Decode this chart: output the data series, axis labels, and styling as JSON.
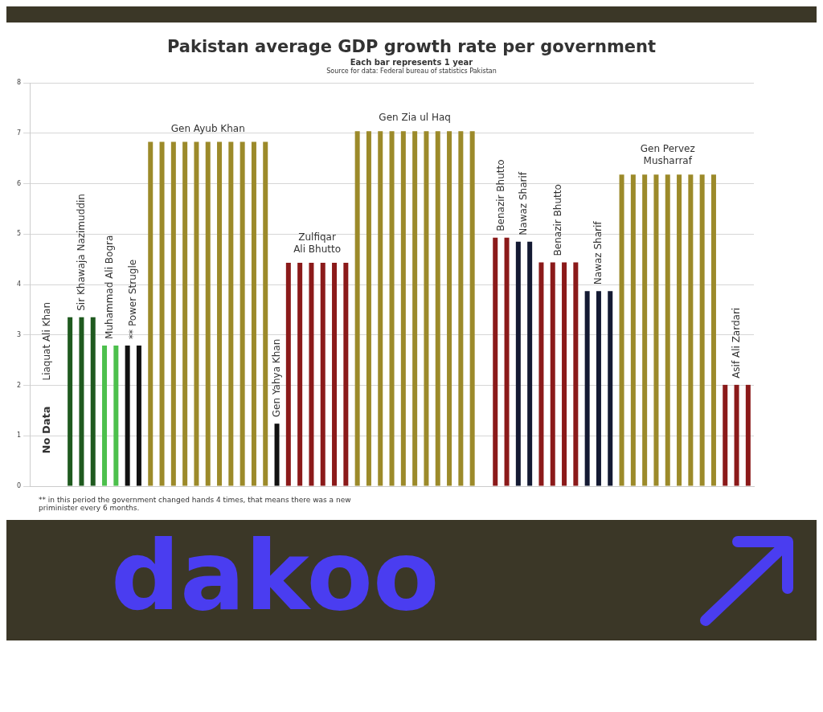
{
  "chart_data": {
    "type": "bar",
    "title": "Pakistan average GDP growth rate per government",
    "subtitle": "Each bar represents 1 year",
    "annotations": [
      "No Data",
      "Source for data: Federal bureau of statistics Pakistan",
      "** in this period the government changed hands 4 times, that means there was a new priminister every 6 months.",
      "dakoo"
    ],
    "categories": [
      null,
      null,
      null,
      null,
      null,
      null,
      null,
      null,
      null,
      null,
      null,
      null,
      null,
      null,
      null,
      null,
      null,
      null,
      null,
      null,
      null,
      null,
      null,
      null,
      null,
      null,
      null,
      null,
      null,
      null,
      null,
      null,
      null,
      null,
      null,
      null,
      null,
      null,
      null,
      null,
      null,
      null,
      null,
      null,
      null,
      null,
      null,
      null,
      null,
      null,
      null,
      null,
      null,
      null,
      null,
      null,
      null,
      null,
      null,
      null,
      null,
      null,
      null
    ],
    "series": [
      {
        "name": "Liaquat Ali Khan",
        "color": "#1f5a1f",
        "values": [
          null,
          null,
          null,
          null,
          null,
          null,
          null,
          null,
          null,
          null,
          null,
          null,
          null,
          null,
          null,
          null,
          null,
          null,
          null,
          null,
          null,
          null,
          null,
          null,
          null,
          null,
          null,
          null,
          null,
          null,
          null,
          null,
          null,
          null,
          null,
          null,
          null,
          null,
          null,
          null,
          null,
          null,
          null,
          null,
          null,
          null,
          null,
          null,
          null,
          null,
          null,
          null,
          null,
          null,
          null,
          null,
          null,
          null,
          null,
          null,
          null,
          null,
          null
        ]
      },
      {
        "name": "Sir Khawaja Nazimuddin",
        "color": "#1f5a1f",
        "values": [
          null,
          null,
          null,
          3.35,
          3.35,
          3.35,
          null,
          null,
          null,
          null,
          null,
          null,
          null,
          null,
          null,
          null,
          null,
          null,
          null,
          null,
          null,
          null,
          null,
          null,
          null,
          null,
          null,
          null,
          null,
          null,
          null,
          null,
          null,
          null,
          null,
          null,
          null,
          null,
          null,
          null,
          null,
          null,
          null,
          null,
          null,
          null,
          null,
          null,
          null,
          null,
          null,
          null,
          null,
          null,
          null,
          null,
          null,
          null,
          null,
          null,
          null,
          null,
          null
        ]
      },
      {
        "name": "Muhammad Ali Bogra",
        "color": "#4cc04c",
        "values": [
          null,
          null,
          null,
          null,
          null,
          null,
          2.79,
          2.79,
          null,
          null,
          null,
          null,
          null,
          null,
          null,
          null,
          null,
          null,
          null,
          null,
          null,
          null,
          null,
          null,
          null,
          null,
          null,
          null,
          null,
          null,
          null,
          null,
          null,
          null,
          null,
          null,
          null,
          null,
          null,
          null,
          null,
          null,
          null,
          null,
          null,
          null,
          null,
          null,
          null,
          null,
          null,
          null,
          null,
          null,
          null,
          null,
          null,
          null,
          null,
          null,
          null,
          null,
          null
        ]
      },
      {
        "name": "** Power Strugle",
        "color": "#111111",
        "values": [
          null,
          null,
          null,
          null,
          null,
          null,
          null,
          null,
          2.79,
          2.79,
          null,
          null,
          null,
          null,
          null,
          null,
          null,
          null,
          null,
          null,
          null,
          null,
          null,
          null,
          null,
          null,
          null,
          null,
          null,
          null,
          null,
          null,
          null,
          null,
          null,
          null,
          null,
          null,
          null,
          null,
          null,
          null,
          null,
          null,
          null,
          null,
          null,
          null,
          null,
          null,
          null,
          null,
          null,
          null,
          null,
          null,
          null,
          null,
          null,
          null,
          null,
          null,
          null
        ]
      },
      {
        "name": "Gen Ayub Khan",
        "color": "#9c8a2a",
        "values": [
          null,
          null,
          null,
          null,
          null,
          null,
          null,
          null,
          null,
          null,
          6.83,
          6.83,
          6.83,
          6.83,
          6.83,
          6.83,
          6.83,
          6.83,
          6.83,
          6.83,
          6.83,
          null,
          null,
          null,
          null,
          null,
          null,
          null,
          null,
          null,
          null,
          null,
          null,
          null,
          null,
          null,
          null,
          null,
          null,
          null,
          null,
          null,
          null,
          null,
          null,
          null,
          null,
          null,
          null,
          null,
          null,
          null,
          null,
          null,
          null,
          null,
          null,
          null,
          null,
          null,
          null,
          null,
          null
        ]
      },
      {
        "name": "Gen Yahya Khan",
        "color": "#111111",
        "values": [
          null,
          null,
          null,
          null,
          null,
          null,
          null,
          null,
          null,
          null,
          null,
          null,
          null,
          null,
          null,
          null,
          null,
          null,
          null,
          null,
          null,
          1.24,
          null,
          null,
          null,
          null,
          null,
          null,
          null,
          null,
          null,
          null,
          null,
          null,
          null,
          null,
          null,
          null,
          null,
          null,
          null,
          null,
          null,
          null,
          null,
          null,
          null,
          null,
          null,
          null,
          null,
          null,
          null,
          null,
          null,
          null,
          null,
          null,
          null,
          null,
          null,
          null,
          null
        ]
      },
      {
        "name": "Zulfiqar Ali Bhutto",
        "color": "#8b1a1a",
        "values": [
          null,
          null,
          null,
          null,
          null,
          null,
          null,
          null,
          null,
          null,
          null,
          null,
          null,
          null,
          null,
          null,
          null,
          null,
          null,
          null,
          null,
          null,
          4.43,
          4.43,
          4.43,
          4.43,
          4.43,
          4.43,
          null,
          null,
          null,
          null,
          null,
          null,
          null,
          null,
          null,
          null,
          null,
          null,
          null,
          null,
          null,
          null,
          null,
          null,
          null,
          null,
          null,
          null,
          null,
          null,
          null,
          null,
          null,
          null,
          null,
          null,
          null,
          null,
          null,
          null,
          null
        ]
      },
      {
        "name": "Gen Zia ul Haq",
        "color": "#9c8a2a",
        "values": [
          null,
          null,
          null,
          null,
          null,
          null,
          null,
          null,
          null,
          null,
          null,
          null,
          null,
          null,
          null,
          null,
          null,
          null,
          null,
          null,
          null,
          null,
          null,
          null,
          null,
          null,
          null,
          null,
          7.04,
          7.04,
          7.04,
          7.04,
          7.04,
          7.04,
          7.04,
          7.04,
          7.04,
          7.04,
          7.04,
          null,
          null,
          null,
          null,
          null,
          null,
          null,
          null,
          null,
          null,
          null,
          null,
          null,
          null,
          null,
          null,
          null,
          null,
          null,
          null,
          null,
          null,
          null,
          null
        ]
      },
      {
        "name": "Benazir Bhutto",
        "color": "#8b1a1a",
        "values": [
          null,
          null,
          null,
          null,
          null,
          null,
          null,
          null,
          null,
          null,
          null,
          null,
          null,
          null,
          null,
          null,
          null,
          null,
          null,
          null,
          null,
          null,
          null,
          null,
          null,
          null,
          null,
          null,
          null,
          null,
          null,
          null,
          null,
          null,
          null,
          null,
          null,
          null,
          null,
          null,
          4.93,
          4.93,
          null,
          null,
          null,
          null,
          null,
          null,
          null,
          null,
          null,
          null,
          null,
          null,
          null,
          null,
          null,
          null,
          null,
          null,
          null,
          null,
          null
        ]
      },
      {
        "name": "Nawaz Sharif",
        "color": "#141a33",
        "values": [
          null,
          null,
          null,
          null,
          null,
          null,
          null,
          null,
          null,
          null,
          null,
          null,
          null,
          null,
          null,
          null,
          null,
          null,
          null,
          null,
          null,
          null,
          null,
          null,
          null,
          null,
          null,
          null,
          null,
          null,
          null,
          null,
          null,
          null,
          null,
          null,
          null,
          null,
          null,
          null,
          null,
          null,
          4.85,
          4.85,
          null,
          null,
          null,
          null,
          null,
          null,
          null,
          null,
          null,
          null,
          null,
          null,
          null,
          null,
          null,
          null,
          null,
          null,
          null
        ]
      },
      {
        "name": "Benazir Bhutto",
        "color": "#8b1a1a",
        "values": [
          null,
          null,
          null,
          null,
          null,
          null,
          null,
          null,
          null,
          null,
          null,
          null,
          null,
          null,
          null,
          null,
          null,
          null,
          null,
          null,
          null,
          null,
          null,
          null,
          null,
          null,
          null,
          null,
          null,
          null,
          null,
          null,
          null,
          null,
          null,
          null,
          null,
          null,
          null,
          null,
          null,
          null,
          null,
          null,
          4.44,
          4.44,
          4.44,
          4.44,
          null,
          null,
          null,
          null,
          null,
          null,
          null,
          null,
          null,
          null,
          null,
          null,
          null,
          null,
          null
        ]
      },
      {
        "name": "Nawaz Sharif",
        "color": "#141a33",
        "values": [
          null,
          null,
          null,
          null,
          null,
          null,
          null,
          null,
          null,
          null,
          null,
          null,
          null,
          null,
          null,
          null,
          null,
          null,
          null,
          null,
          null,
          null,
          null,
          null,
          null,
          null,
          null,
          null,
          null,
          null,
          null,
          null,
          null,
          null,
          null,
          null,
          null,
          null,
          null,
          null,
          null,
          null,
          null,
          null,
          null,
          null,
          null,
          null,
          3.87,
          3.87,
          3.87,
          null,
          null,
          null,
          null,
          null,
          null,
          null,
          null,
          null,
          null,
          null,
          null
        ]
      },
      {
        "name": "Gen Pervez Musharraf",
        "color": "#9c8a2a",
        "values": [
          null,
          null,
          null,
          null,
          null,
          null,
          null,
          null,
          null,
          null,
          null,
          null,
          null,
          null,
          null,
          null,
          null,
          null,
          null,
          null,
          null,
          null,
          null,
          null,
          null,
          null,
          null,
          null,
          null,
          null,
          null,
          null,
          null,
          null,
          null,
          null,
          null,
          null,
          null,
          null,
          null,
          null,
          null,
          null,
          null,
          null,
          null,
          null,
          null,
          null,
          null,
          6.18,
          6.18,
          6.18,
          6.18,
          6.18,
          6.18,
          6.18,
          6.18,
          6.18,
          null,
          null,
          null
        ]
      },
      {
        "name": "Asif Ali Zardari",
        "color": "#8b1a1a",
        "values": [
          null,
          null,
          null,
          null,
          null,
          null,
          null,
          null,
          null,
          null,
          null,
          null,
          null,
          null,
          null,
          null,
          null,
          null,
          null,
          null,
          null,
          null,
          null,
          null,
          null,
          null,
          null,
          null,
          null,
          null,
          null,
          null,
          null,
          null,
          null,
          null,
          null,
          null,
          null,
          null,
          null,
          null,
          null,
          null,
          null,
          null,
          null,
          null,
          null,
          null,
          null,
          null,
          null,
          null,
          null,
          null,
          null,
          null,
          null,
          null,
          2.01,
          2.01,
          2.01
        ]
      }
    ],
    "ylim": [
      0,
      8
    ],
    "yticks": [
      0,
      1,
      2,
      3,
      4,
      5,
      6,
      7,
      8
    ],
    "grid": "y",
    "legend": false,
    "tick_labels": "y"
  }
}
